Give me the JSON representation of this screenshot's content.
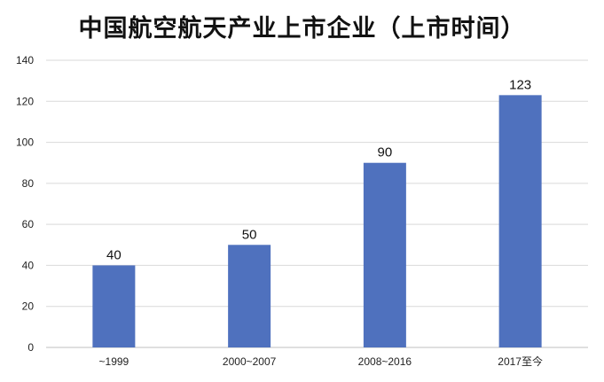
{
  "chart_data": {
    "type": "bar",
    "title": "中国航空航天产业上市企业（上市时间）",
    "xlabel": "",
    "ylabel": "",
    "categories": [
      "~1999",
      "2000~2007",
      "2008~2016",
      "2017至今"
    ],
    "values": [
      40,
      50,
      90,
      123
    ],
    "ylim": [
      0,
      140
    ],
    "yticks": [
      0,
      20,
      40,
      60,
      80,
      100,
      120,
      140
    ],
    "grid": true,
    "legend": "none",
    "bar_color": "#4f71be",
    "grid_color": "#d9d9d9",
    "axis_color": "#bfbfbf",
    "show_data_labels": true
  }
}
